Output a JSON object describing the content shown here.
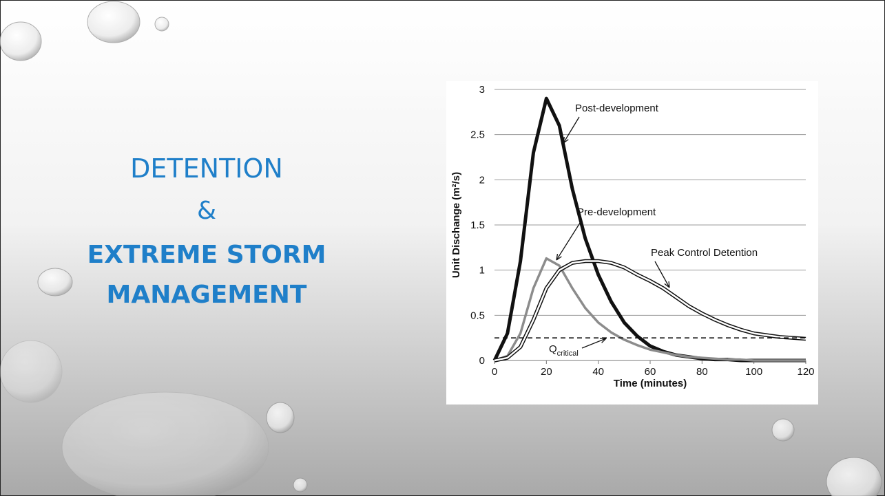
{
  "slide": {
    "title_lines": [
      "DETENTION",
      "&",
      "EXTREME STORM",
      "MANAGEMENT"
    ]
  },
  "chart_data": {
    "type": "line",
    "x_label": "Time (minutes)",
    "y_label": "Unit Dischange (m²/s)",
    "xlim": [
      0,
      120
    ],
    "xticks": [
      0,
      20,
      40,
      60,
      80,
      100,
      120
    ],
    "ylim": [
      0,
      3
    ],
    "yticks": [
      0,
      0.5,
      1,
      1.5,
      2,
      2.5,
      3
    ],
    "grid": true,
    "series": [
      {
        "name": "Post-development",
        "color": "#111111",
        "style": "bold",
        "x": [
          0,
          5,
          10,
          15,
          20,
          25,
          30,
          35,
          40,
          45,
          50,
          55,
          60,
          65,
          70,
          75,
          80,
          85,
          90,
          95,
          100,
          105,
          110,
          115,
          120
        ],
        "values": [
          0,
          0.3,
          1.1,
          2.3,
          2.9,
          2.6,
          1.9,
          1.35,
          0.95,
          0.65,
          0.42,
          0.27,
          0.16,
          0.1,
          0.06,
          0.04,
          0.02,
          0.01,
          0.01,
          0,
          0,
          0,
          0,
          0,
          0
        ]
      },
      {
        "name": "Pre-development",
        "color": "#8c8c8c",
        "style": "solid",
        "x": [
          0,
          5,
          10,
          15,
          20,
          25,
          30,
          35,
          40,
          45,
          50,
          55,
          60,
          65,
          70,
          75,
          80,
          85,
          90,
          95,
          100,
          105,
          110,
          115,
          120
        ],
        "values": [
          0,
          0.05,
          0.3,
          0.8,
          1.13,
          1.05,
          0.8,
          0.58,
          0.42,
          0.31,
          0.23,
          0.17,
          0.12,
          0.09,
          0.06,
          0.04,
          0.03,
          0.02,
          0.01,
          0.01,
          0,
          0,
          0,
          0,
          0
        ]
      },
      {
        "name": "Peak Control Detention",
        "color": "#111111",
        "style": "double",
        "x": [
          0,
          5,
          10,
          15,
          20,
          25,
          30,
          35,
          40,
          45,
          50,
          55,
          60,
          65,
          70,
          75,
          80,
          85,
          90,
          95,
          100,
          105,
          110,
          115,
          120
        ],
        "values": [
          0,
          0.03,
          0.15,
          0.45,
          0.8,
          1.0,
          1.08,
          1.1,
          1.1,
          1.08,
          1.03,
          0.95,
          0.88,
          0.8,
          0.7,
          0.6,
          0.52,
          0.45,
          0.39,
          0.34,
          0.3,
          0.28,
          0.26,
          0.25,
          0.24
        ]
      },
      {
        "name": "Q",
        "name_subscript": "critical",
        "color": "#111111",
        "style": "dashed",
        "x": [
          0,
          120
        ],
        "values": [
          0.25,
          0.25
        ]
      }
    ]
  }
}
